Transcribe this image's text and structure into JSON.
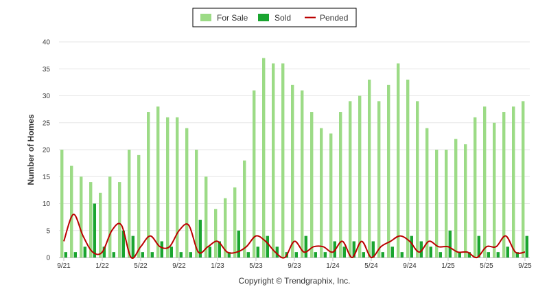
{
  "chart_data": {
    "type": "bar",
    "title": "",
    "ylabel": "Number of Homes",
    "xlabel": "",
    "ylim": [
      0,
      40
    ],
    "yticks": [
      0,
      5,
      10,
      15,
      20,
      25,
      30,
      35,
      40
    ],
    "legend_position": "top-center",
    "copyright": "Copyright © Trendgraphix, Inc.",
    "x_tick_labels": [
      {
        "index": 0,
        "label": "9/21"
      },
      {
        "index": 4,
        "label": "1/22"
      },
      {
        "index": 8,
        "label": "5/22"
      },
      {
        "index": 12,
        "label": "9/22"
      },
      {
        "index": 16,
        "label": "1/23"
      },
      {
        "index": 20,
        "label": "5/23"
      },
      {
        "index": 24,
        "label": "9/23"
      },
      {
        "index": 28,
        "label": "1/24"
      },
      {
        "index": 32,
        "label": "5/24"
      },
      {
        "index": 36,
        "label": "9/24"
      },
      {
        "index": 40,
        "label": "1/25"
      },
      {
        "index": 44,
        "label": "5/25"
      },
      {
        "index": 48,
        "label": "9/25"
      }
    ],
    "categories": [
      "9/21",
      "10/21",
      "11/21",
      "12/21",
      "1/22",
      "2/22",
      "3/22",
      "4/22",
      "5/22",
      "6/22",
      "7/22",
      "8/22",
      "9/22",
      "10/22",
      "11/22",
      "12/22",
      "1/23",
      "2/23",
      "3/23",
      "4/23",
      "5/23",
      "6/23",
      "7/23",
      "8/23",
      "9/23",
      "10/23",
      "11/23",
      "12/23",
      "1/24",
      "2/24",
      "3/24",
      "4/24",
      "5/24",
      "6/24",
      "7/24",
      "8/24",
      "9/24",
      "10/24",
      "11/24",
      "12/24",
      "1/25",
      "2/25",
      "3/25",
      "4/25",
      "5/25",
      "6/25",
      "7/25",
      "8/25",
      "9/25"
    ],
    "series": [
      {
        "name": "For Sale",
        "type": "bar",
        "color": "#9cdb86",
        "values": [
          20,
          17,
          15,
          14,
          12,
          15,
          14,
          20,
          19,
          27,
          28,
          26,
          26,
          24,
          20,
          15,
          9,
          11,
          13,
          18,
          31,
          37,
          36,
          36,
          32,
          31,
          27,
          24,
          23,
          27,
          29,
          30,
          33,
          29,
          32,
          36,
          33,
          29,
          24,
          20,
          20,
          22,
          21,
          26,
          28,
          25,
          27,
          28,
          29
        ]
      },
      {
        "name": "Sold",
        "type": "bar",
        "color": "#1aa530",
        "values": [
          1,
          1,
          2,
          10,
          2,
          1,
          5,
          4,
          1,
          1,
          3,
          2,
          1,
          1,
          7,
          2,
          3,
          1,
          5,
          1,
          2,
          4,
          2,
          1,
          1,
          4,
          1,
          1,
          3,
          2,
          3,
          1,
          3,
          1,
          2,
          1,
          4,
          3,
          2,
          1,
          5,
          1,
          1,
          4,
          1,
          1,
          2,
          1,
          4
        ]
      },
      {
        "name": "Pended",
        "type": "line",
        "color": "#bb0000",
        "values": [
          3,
          8,
          4,
          1,
          1,
          5,
          6,
          0,
          2,
          4,
          2,
          2,
          5,
          6,
          1,
          2,
          3,
          1,
          1,
          2,
          4,
          3,
          1,
          0,
          3,
          1,
          2,
          2,
          1,
          3,
          0,
          3,
          0,
          2,
          3,
          4,
          3,
          1,
          3,
          2,
          2,
          1,
          1,
          0,
          2,
          2,
          4,
          1,
          1
        ]
      }
    ]
  }
}
